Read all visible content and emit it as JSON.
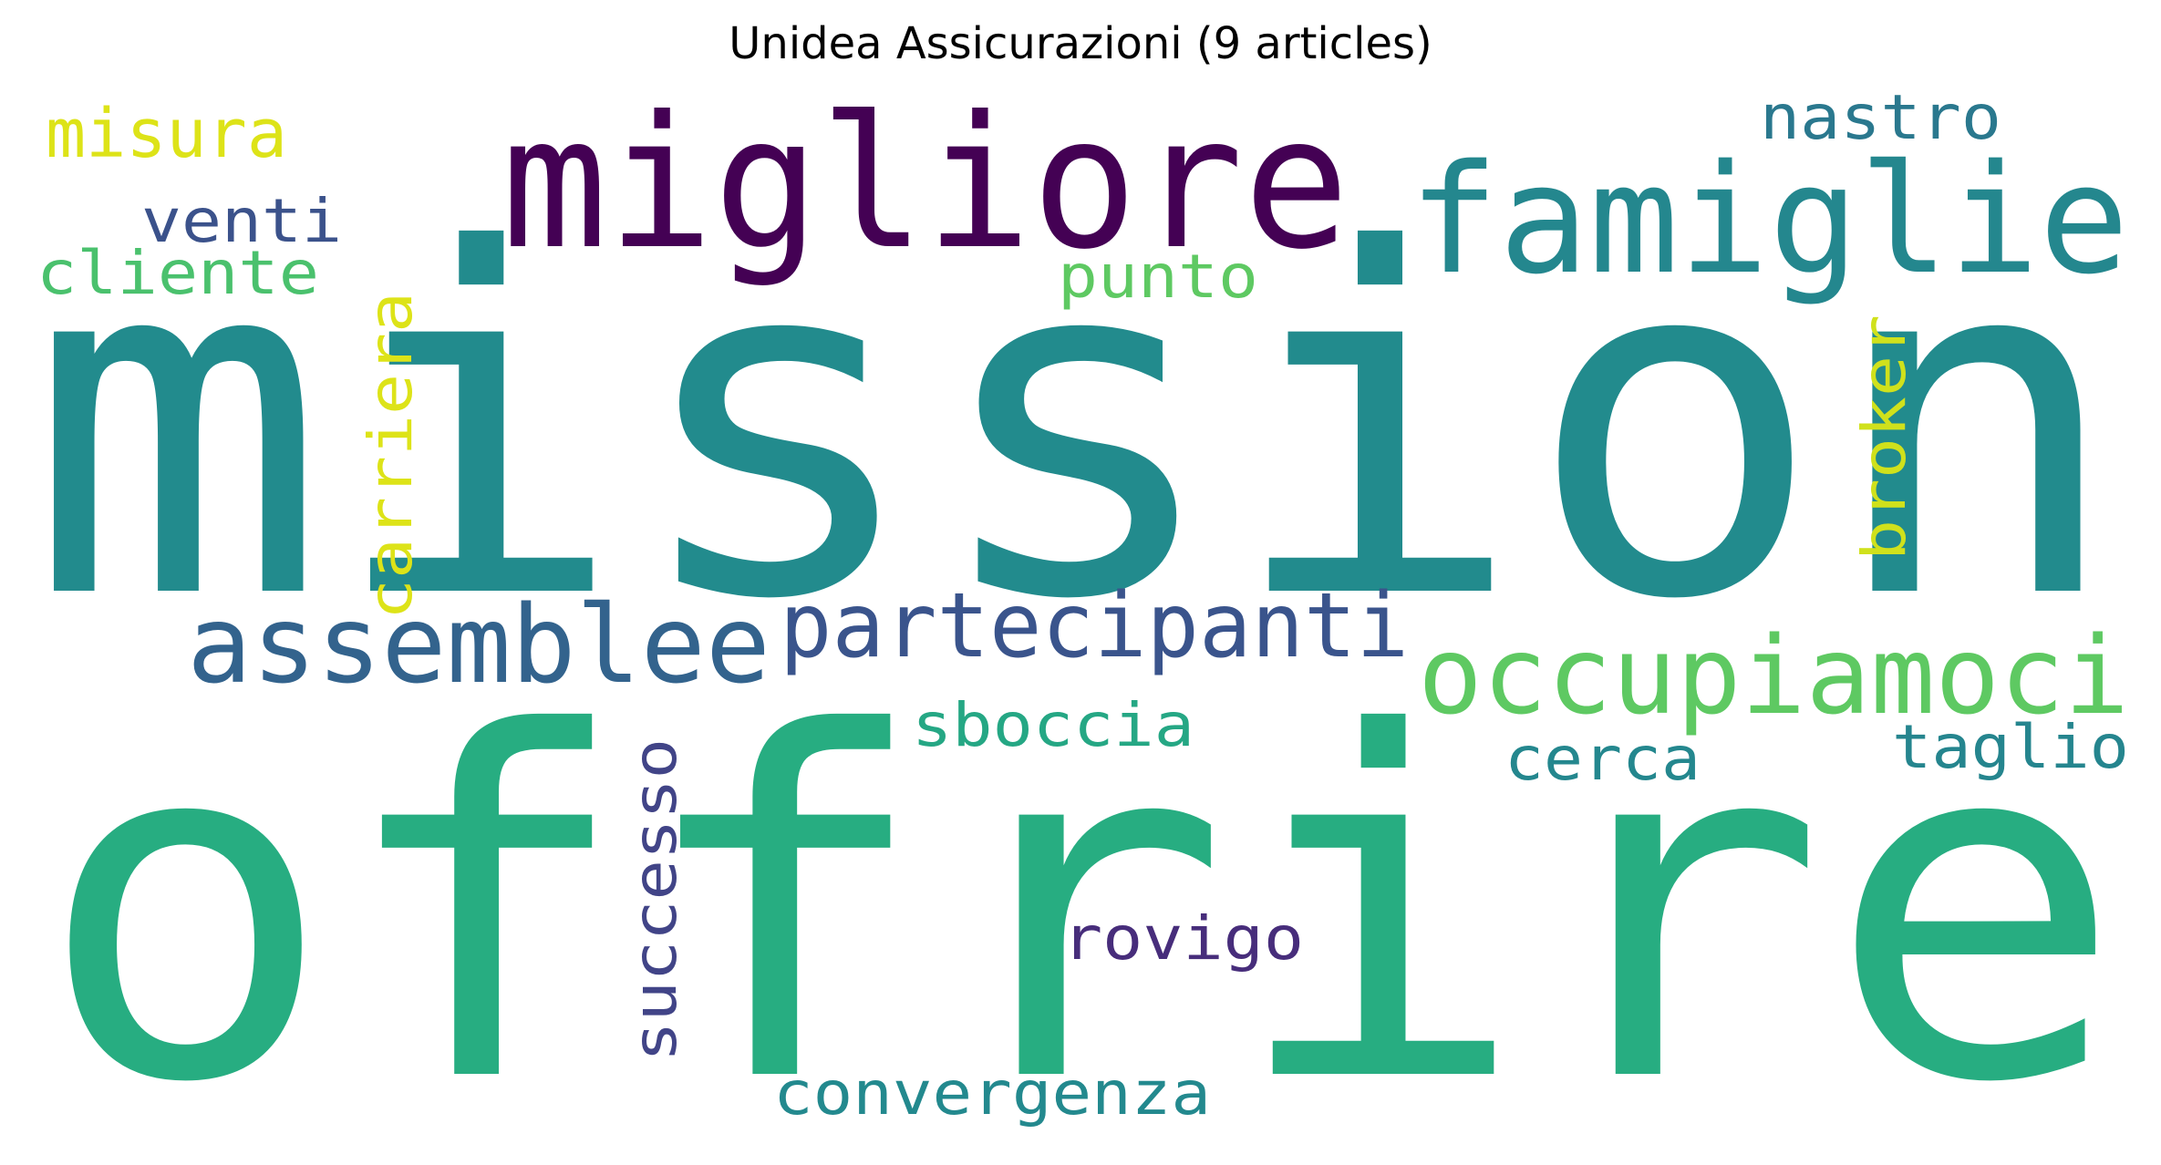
{
  "title": "Unidea Assicurazioni (9 articles)",
  "words": [
    {
      "text": "mission",
      "color": "#228b8d",
      "orientation": "horizontal"
    },
    {
      "text": "offrire",
      "color": "#27ad81",
      "orientation": "horizontal"
    },
    {
      "text": "migliore",
      "color": "#440154",
      "orientation": "horizontal"
    },
    {
      "text": "famiglie",
      "color": "#24878e",
      "orientation": "horizontal"
    },
    {
      "text": "assemblee",
      "color": "#33638d",
      "orientation": "horizontal"
    },
    {
      "text": "partecipanti",
      "color": "#3a548c",
      "orientation": "horizontal"
    },
    {
      "text": "occupiamoci",
      "color": "#5ec962",
      "orientation": "horizontal"
    },
    {
      "text": "misura",
      "color": "#dde318",
      "orientation": "horizontal"
    },
    {
      "text": "nastro",
      "color": "#2a788e",
      "orientation": "horizontal"
    },
    {
      "text": "venti",
      "color": "#3b528b",
      "orientation": "horizontal"
    },
    {
      "text": "cliente",
      "color": "#4ac16d",
      "orientation": "horizontal"
    },
    {
      "text": "punto",
      "color": "#5ec962",
      "orientation": "horizontal"
    },
    {
      "text": "carriera",
      "color": "#dde318",
      "orientation": "vertical"
    },
    {
      "text": "broker",
      "color": "#d0e11c",
      "orientation": "vertical"
    },
    {
      "text": "sboccia",
      "color": "#25a784",
      "orientation": "horizontal"
    },
    {
      "text": "taglio",
      "color": "#25858e",
      "orientation": "horizontal"
    },
    {
      "text": "cerca",
      "color": "#24878e",
      "orientation": "horizontal"
    },
    {
      "text": "successo",
      "color": "#414487",
      "orientation": "vertical"
    },
    {
      "text": "rovigo",
      "color": "#472d7b",
      "orientation": "horizontal"
    },
    {
      "text": "convergenza",
      "color": "#23898e",
      "orientation": "horizontal"
    }
  ]
}
